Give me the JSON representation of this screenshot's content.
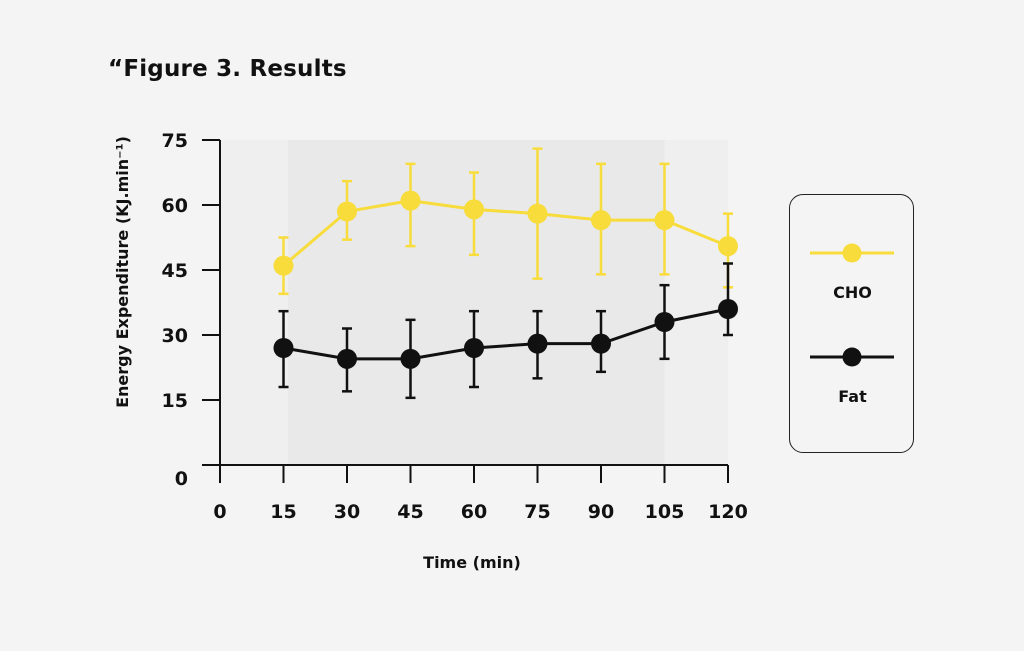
{
  "page": {
    "title": "“Figure 3. Results"
  },
  "colors": {
    "background": "#f4f4f4",
    "band": "#e9e9e9",
    "cho": "#f7dc3b",
    "fat": "#111111"
  },
  "chart_data": {
    "type": "line",
    "title": "“Figure 3. Results",
    "xlabel": "Time (min)",
    "ylabel": "Energy Expenditure (KJ.min⁻¹)",
    "x": [
      15,
      30,
      45,
      60,
      75,
      90,
      105,
      120
    ],
    "xticks": [
      0,
      15,
      30,
      45,
      60,
      75,
      90,
      105,
      120
    ],
    "yticks": [
      0,
      15,
      30,
      45,
      60,
      75
    ],
    "xlim": [
      0,
      120
    ],
    "ylim": [
      0,
      75
    ],
    "shaded_region": {
      "x_start": 16,
      "x_end": 105
    },
    "legend": {
      "position": "right",
      "entries": [
        "CHO",
        "Fat"
      ]
    },
    "series": [
      {
        "name": "CHO",
        "color": "#f7dc3b",
        "values": [
          46,
          58.5,
          61,
          59,
          58,
          56.5,
          56.5,
          50.5
        ],
        "error_low": [
          39.5,
          52,
          50.5,
          48.5,
          43,
          44,
          44,
          41
        ],
        "error_high": [
          52.5,
          65.5,
          69.5,
          67.5,
          73,
          69.5,
          69.5,
          58
        ]
      },
      {
        "name": "Fat",
        "color": "#111111",
        "values": [
          27,
          24.5,
          24.5,
          27,
          28,
          28,
          33,
          36
        ],
        "error_low": [
          18,
          17,
          15.5,
          18,
          20,
          21.5,
          24.5,
          30
        ],
        "error_high": [
          35.5,
          31.5,
          33.5,
          35.5,
          35.5,
          35.5,
          41.5,
          46.5
        ]
      }
    ]
  }
}
